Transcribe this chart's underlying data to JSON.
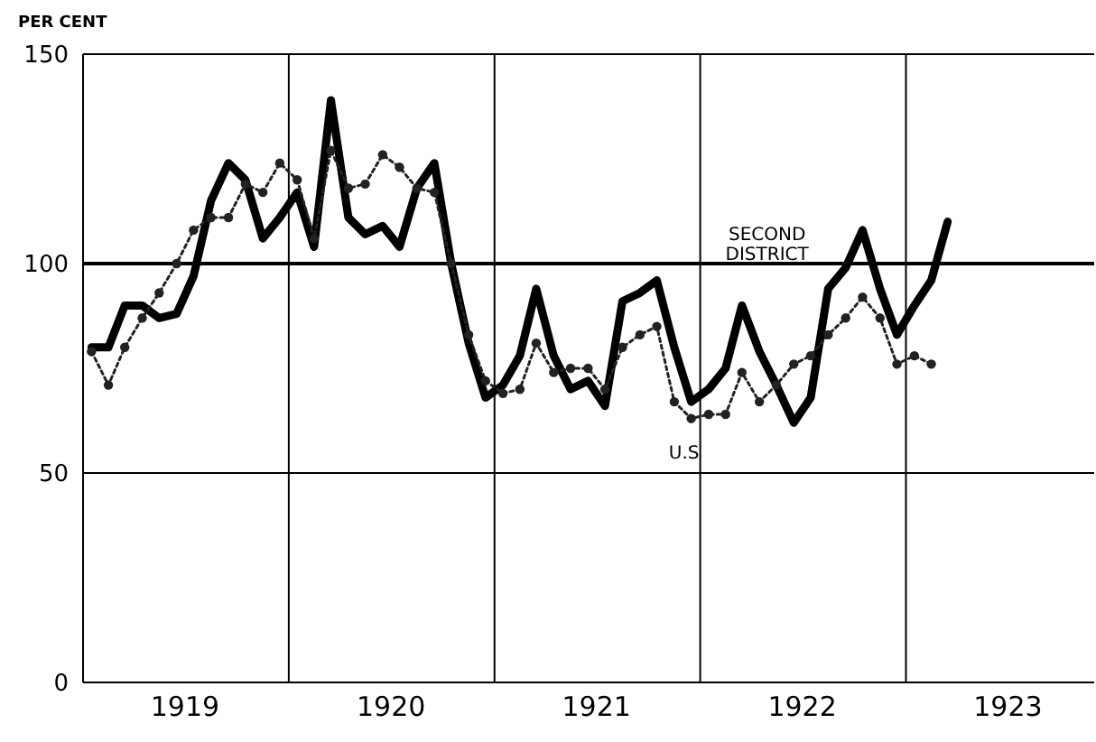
{
  "chart_data": {
    "type": "line",
    "ylabel": "PER CENT",
    "x": [
      "1919-01-16",
      "1919-02-15",
      "1919-03-16",
      "1919-04-16",
      "1919-05-16",
      "1919-06-16",
      "1919-07-16",
      "1919-08-16",
      "1919-09-16",
      "1919-10-16",
      "1919-11-16",
      "1919-12-16",
      "1920-01-16",
      "1920-02-15",
      "1920-03-16",
      "1920-04-16",
      "1920-05-16",
      "1920-06-16",
      "1920-07-16",
      "1920-08-16",
      "1920-09-16",
      "1920-10-16",
      "1920-11-16",
      "1920-12-16",
      "1921-01-16",
      "1921-02-15",
      "1921-03-16",
      "1921-04-16",
      "1921-05-16",
      "1921-06-16",
      "1921-07-16",
      "1921-08-16",
      "1921-09-16",
      "1921-10-16",
      "1921-11-16",
      "1921-12-16",
      "1922-01-16",
      "1922-02-15",
      "1922-03-16",
      "1922-04-16",
      "1922-05-16",
      "1922-06-16",
      "1922-07-16",
      "1922-08-16",
      "1922-09-16",
      "1922-10-16",
      "1922-11-16",
      "1922-12-16",
      "1923-01-16",
      "1923-02-15",
      "1923-03-16"
    ],
    "series": [
      {
        "name": "SECOND DISTRICT",
        "color": "#000000",
        "line_style": "solid",
        "marker": "none",
        "values": [
          80,
          80,
          90,
          90,
          87,
          88,
          97,
          115,
          124,
          120,
          106,
          111,
          117,
          104,
          139,
          111,
          107,
          109,
          104,
          118,
          124,
          100,
          81,
          68,
          71,
          78,
          94,
          78,
          70,
          72,
          66,
          91,
          93,
          96,
          80,
          67,
          70,
          75,
          90,
          79,
          71,
          62,
          68,
          94,
          99,
          108,
          94,
          83,
          90,
          96,
          110
        ]
      },
      {
        "name": "U.S",
        "color": "#222222",
        "line_style": "dotted",
        "marker": "circle",
        "values": [
          79,
          71,
          80,
          87,
          93,
          100,
          108,
          111,
          111,
          119,
          117,
          124,
          120,
          106,
          127,
          118,
          119,
          126,
          123,
          118,
          117,
          100,
          83,
          72,
          69,
          70,
          81,
          74,
          75,
          75,
          70,
          80,
          83,
          85,
          67,
          63,
          64,
          64,
          74,
          67,
          71,
          76,
          78,
          83,
          87,
          92,
          87,
          76,
          78,
          76,
          null
        ]
      }
    ],
    "xlim": [
      "1919-01-01",
      "1923-12-01"
    ],
    "xticks": [
      {
        "value": "1919-07-01",
        "label": "1919"
      },
      {
        "value": "1920-01-01",
        "label": null
      },
      {
        "value": "1920-07-01",
        "label": "1920"
      },
      {
        "value": "1921-01-01",
        "label": null
      },
      {
        "value": "1921-07-01",
        "label": "1921"
      },
      {
        "value": "1922-01-01",
        "label": null
      },
      {
        "value": "1922-07-01",
        "label": "1922"
      },
      {
        "value": "1923-01-01",
        "label": null
      },
      {
        "value": "1923-07-01",
        "label": "1923"
      }
    ],
    "ylim": [
      0,
      150
    ],
    "yticks": [
      0,
      50,
      100,
      150
    ],
    "ref_lines": [
      {
        "axis": "y",
        "value": 100,
        "label": null,
        "color": "#000000"
      }
    ],
    "grid": true
  }
}
